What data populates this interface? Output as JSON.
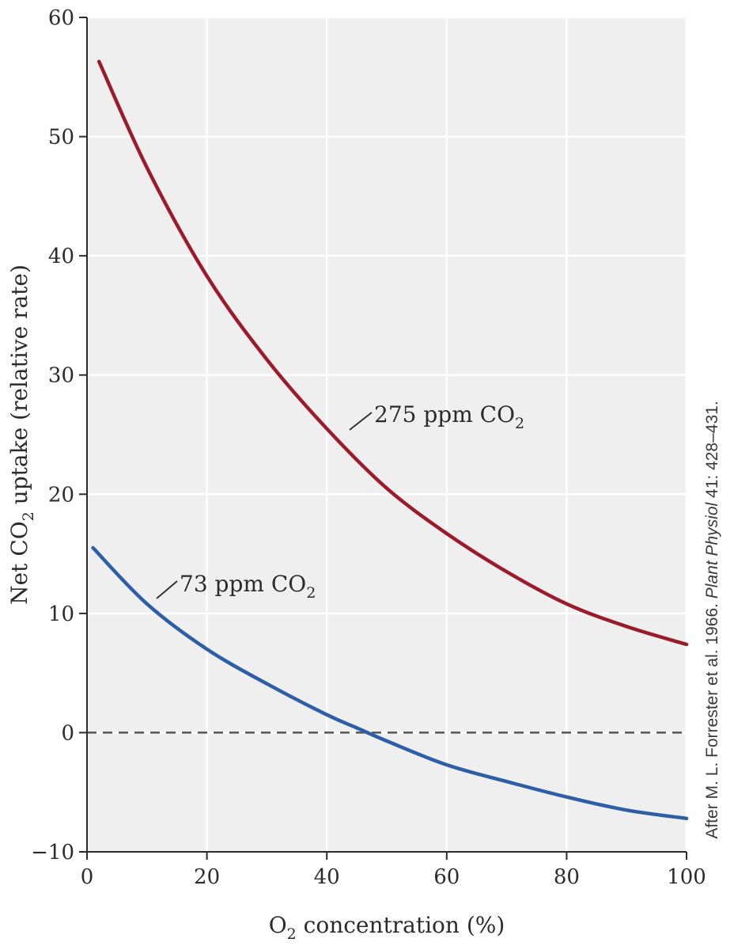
{
  "chart_data": {
    "type": "line",
    "xlabel": {
      "prefix": "O",
      "sub": "2",
      "suffix": " concentration (%)"
    },
    "ylabel": {
      "prefix": "Net CO",
      "sub": "2",
      "suffix": " uptake (relative rate)"
    },
    "xlim": [
      0,
      100
    ],
    "ylim": [
      -10,
      60
    ],
    "xticks": [
      0,
      20,
      40,
      60,
      80,
      100
    ],
    "yticks": [
      -10,
      0,
      10,
      20,
      30,
      40,
      50,
      60
    ],
    "ytick_labels": [
      "−10",
      "0",
      "10",
      "20",
      "30",
      "40",
      "50",
      "60"
    ],
    "grid": true,
    "reference_line": {
      "y": 0,
      "style": "dashed"
    },
    "series": [
      {
        "name": "275 ppm CO2",
        "label_prefix": "275 ppm CO",
        "label_sub": "2",
        "color": "#9b1b2a",
        "x": [
          2,
          10,
          20,
          30,
          40,
          50,
          60,
          70,
          80,
          90,
          100
        ],
        "y": [
          56.3,
          47.4,
          38.3,
          31.3,
          25.5,
          20.5,
          16.7,
          13.5,
          10.8,
          8.9,
          7.4
        ]
      },
      {
        "name": "73 ppm CO2",
        "label_prefix": "73 ppm CO",
        "label_sub": "2",
        "color": "#2c5fa8",
        "x": [
          1,
          10,
          20,
          30,
          40,
          45,
          50,
          60,
          70,
          80,
          90,
          100
        ],
        "y": [
          15.5,
          10.8,
          7.0,
          4.1,
          1.5,
          0.4,
          -0.7,
          -2.7,
          -4.1,
          -5.4,
          -6.5,
          -7.2
        ]
      }
    ],
    "annotations": [
      {
        "prefix": "After M. L. Forrester et al. 1966. ",
        "italic": "Plant Physiol",
        "suffix": " 41: 428–431."
      }
    ]
  }
}
